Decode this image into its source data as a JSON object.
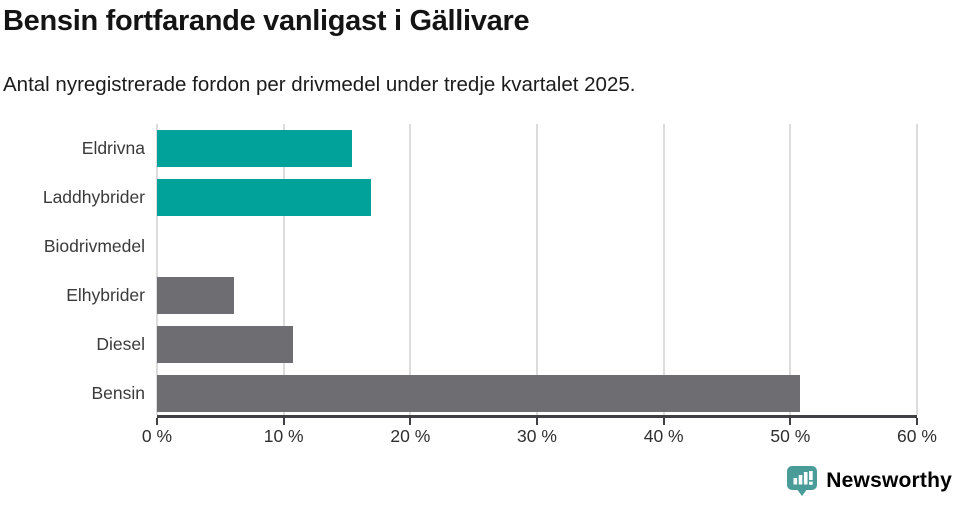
{
  "header": {
    "title": "Bensin fortfarande vanligast i Gällivare",
    "subtitle": "Antal nyregistrerade fordon per drivmedel under tredje kvartalet 2025."
  },
  "chart_data": {
    "type": "bar",
    "orientation": "horizontal",
    "title": "Bensin fortfarande vanligast i Gällivare",
    "subtitle": "Antal nyregistrerade fordon per drivmedel under tredje kvartalet 2025.",
    "categories": [
      "Eldrivna",
      "Laddhybrider",
      "Biodrivmedel",
      "Elhybrider",
      "Diesel",
      "Bensin"
    ],
    "values": [
      15.4,
      16.9,
      0,
      6.1,
      10.7,
      50.8
    ],
    "unit": "%",
    "xlim": [
      0,
      60
    ],
    "xticks": [
      0,
      10,
      20,
      30,
      40,
      50,
      60
    ],
    "xtick_labels": [
      "0 %",
      "10 %",
      "20 %",
      "30 %",
      "40 %",
      "50 %",
      "60 %"
    ],
    "grid": "vertical",
    "legend": "none",
    "bar_colors": [
      "#00a299",
      "#00a299",
      "#00a299",
      "#6d6d72",
      "#6d6d72",
      "#6d6d72"
    ]
  },
  "colors": {
    "teal_bar": "#00a299",
    "gray_bar": "#6d6d72",
    "gridline": "#dcdcdc",
    "axis": "#404044",
    "brand_teal": "#3d9894"
  },
  "branding": {
    "logo_text": "Newsworthy",
    "logo_icon": "chart-speech-bubble-icon"
  }
}
